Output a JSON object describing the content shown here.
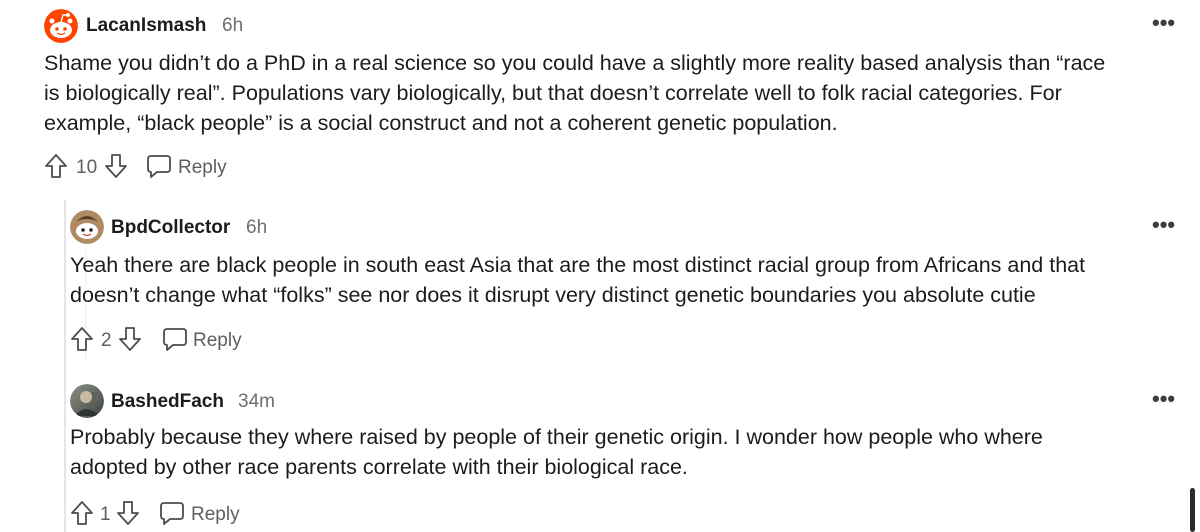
{
  "comments": [
    {
      "username": "LacanIsmash",
      "time": "6h",
      "avatar_icon": "snoo-avatar-icon",
      "text_lines": [
        "Shame you didn’t do a PhD in a real science so you could have a slightly more reality based analysis than “race",
        "is biologically real”. Populations vary biologically, but that doesn’t correlate well to folk racial categories. For",
        "example, “black people” is a social construct and not a coherent genetic population."
      ],
      "score": "10",
      "reply_label": "Reply"
    },
    {
      "username": "BpdCollector",
      "time": "6h",
      "avatar_icon": "snoo-avatar-icon",
      "text_lines": [
        "Yeah there are black people in south east Asia that are the most distinct racial group from Africans and that",
        "doesn’t change what “folks” see nor does it disrupt very distinct genetic boundaries you absolute cutie"
      ],
      "score": "2",
      "reply_label": "Reply"
    },
    {
      "username": "BashedFach",
      "time": "34m",
      "avatar_icon": "photo-avatar-icon",
      "text_lines": [
        "Probably because they where raised by people of their genetic origin. I wonder how people who where",
        "adopted by other race parents correlate with their biological race."
      ],
      "score": "1",
      "reply_label": "Reply"
    }
  ],
  "more_label": "•••",
  "colors": {
    "accent_avatar": "#ff4500",
    "text": "#1c1c1c",
    "muted": "#6b6f72"
  }
}
